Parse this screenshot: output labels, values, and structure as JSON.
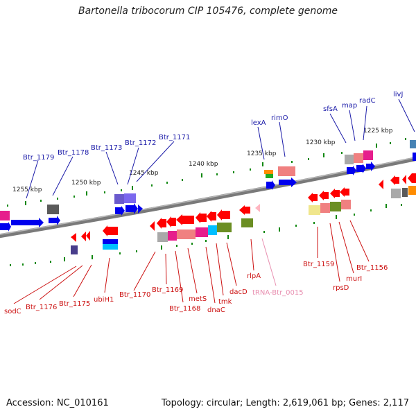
{
  "title": "Bartonella tribocorum CIP 105476, complete genome",
  "footer": {
    "accession": "Accession: NC_010161",
    "summary": "Topology: circular; Length: 2,619,061 bp; Genes: 2,117"
  },
  "colors": {
    "backbone": "#7f7f7f",
    "top_label": "#1a1aa8",
    "bottom_label": "#cc1111",
    "trna_label": "#e88fb0",
    "tick": "#118811"
  },
  "scale_labels": [
    "1255 kbp",
    "1250 kbp",
    "1245 kbp",
    "1240 kbp",
    "1235 kbp",
    "1230 kbp",
    "1225 kbp"
  ],
  "top_genes": [
    "Btr_1179",
    "Btr_1178",
    "Btr_1173",
    "Btr_1172",
    "Btr_1171",
    "lexA",
    "rimO",
    "sfsA",
    "map",
    "radC",
    "livJ"
  ],
  "bottom_genes": [
    "sodC",
    "Btr_1176",
    "Btr_1175",
    "ubiH1",
    "Btr_1170",
    "Btr_1169",
    "Btr_1168",
    "metS",
    "dnaC",
    "tmk",
    "dacD",
    "rlpA",
    "Btr_1159",
    "rpsD",
    "murI",
    "Btr_1156"
  ],
  "trna_gene": "tRNA-Btr_0015"
}
